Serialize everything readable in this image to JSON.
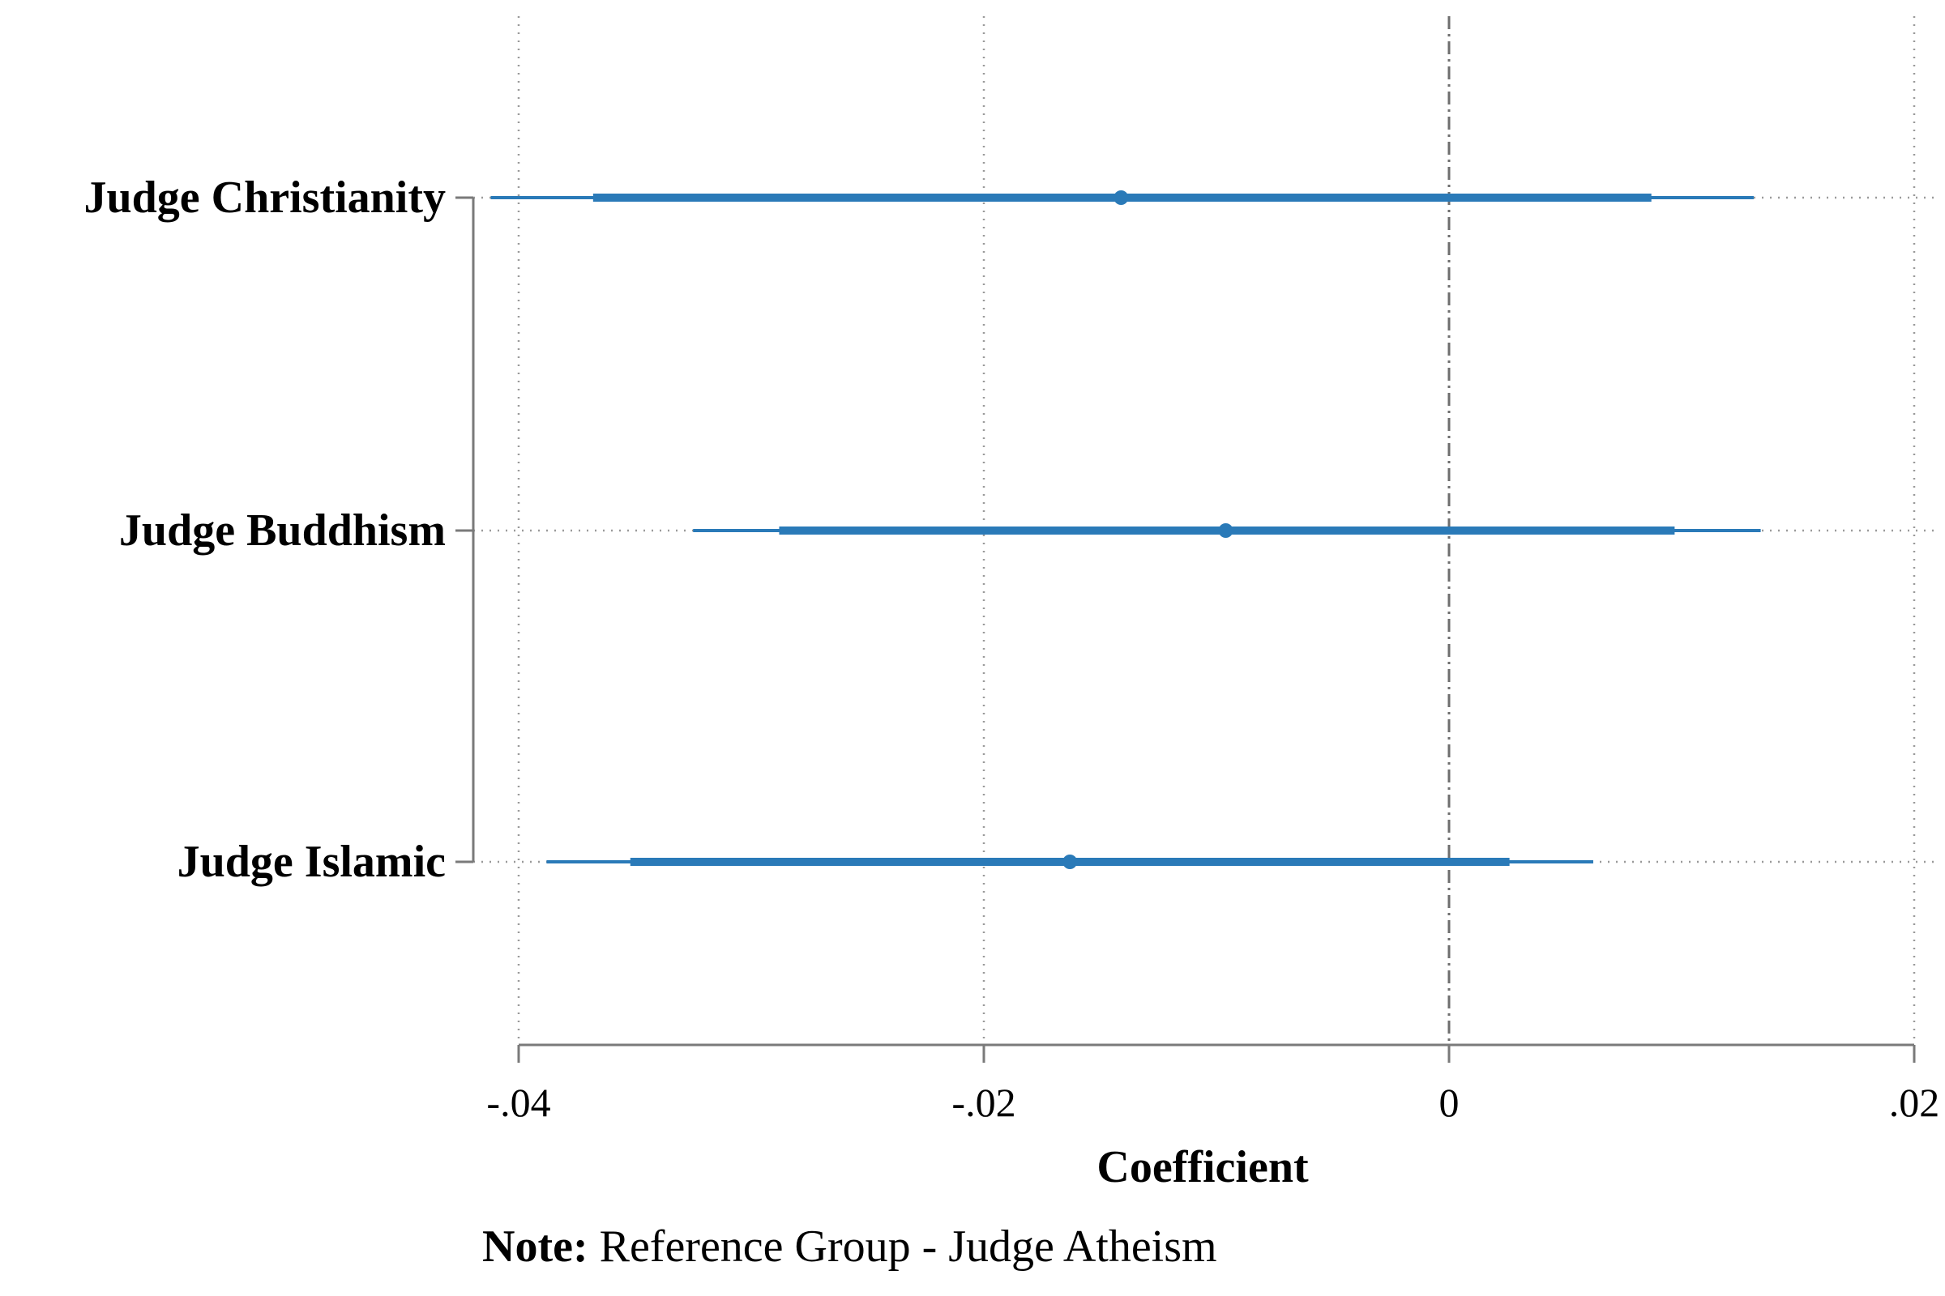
{
  "chart_data": {
    "type": "coefficient_plot",
    "xlabel": "Coefficient",
    "x_ticks": [
      -0.04,
      -0.02,
      0,
      0.02
    ],
    "x_tick_labels": [
      "-.04",
      "-.02",
      "0",
      ".02"
    ],
    "xlim": [
      -0.04,
      0.02
    ],
    "reference_line": 0,
    "grid": true,
    "series_color": "#2a7ab8",
    "categories": [
      "Judge Christianity",
      "Judge Buddhism",
      "Judge Islamic"
    ],
    "estimates": [
      {
        "label": "Judge Christianity",
        "coef": -0.0141,
        "ci_inner": [
          -0.0368,
          0.0087
        ],
        "ci_outer": [
          -0.0412,
          0.0131
        ]
      },
      {
        "label": "Judge Buddhism",
        "coef": -0.0096,
        "ci_inner": [
          -0.0288,
          0.0097
        ],
        "ci_outer": [
          -0.0325,
          0.0134
        ]
      },
      {
        "label": "Judge Islamic",
        "coef": -0.0163,
        "ci_inner": [
          -0.0352,
          0.0026
        ],
        "ci_outer": [
          -0.0388,
          0.0062
        ]
      }
    ]
  },
  "note": {
    "label": "Note:",
    "text": " Reference Group - Judge Atheism"
  }
}
